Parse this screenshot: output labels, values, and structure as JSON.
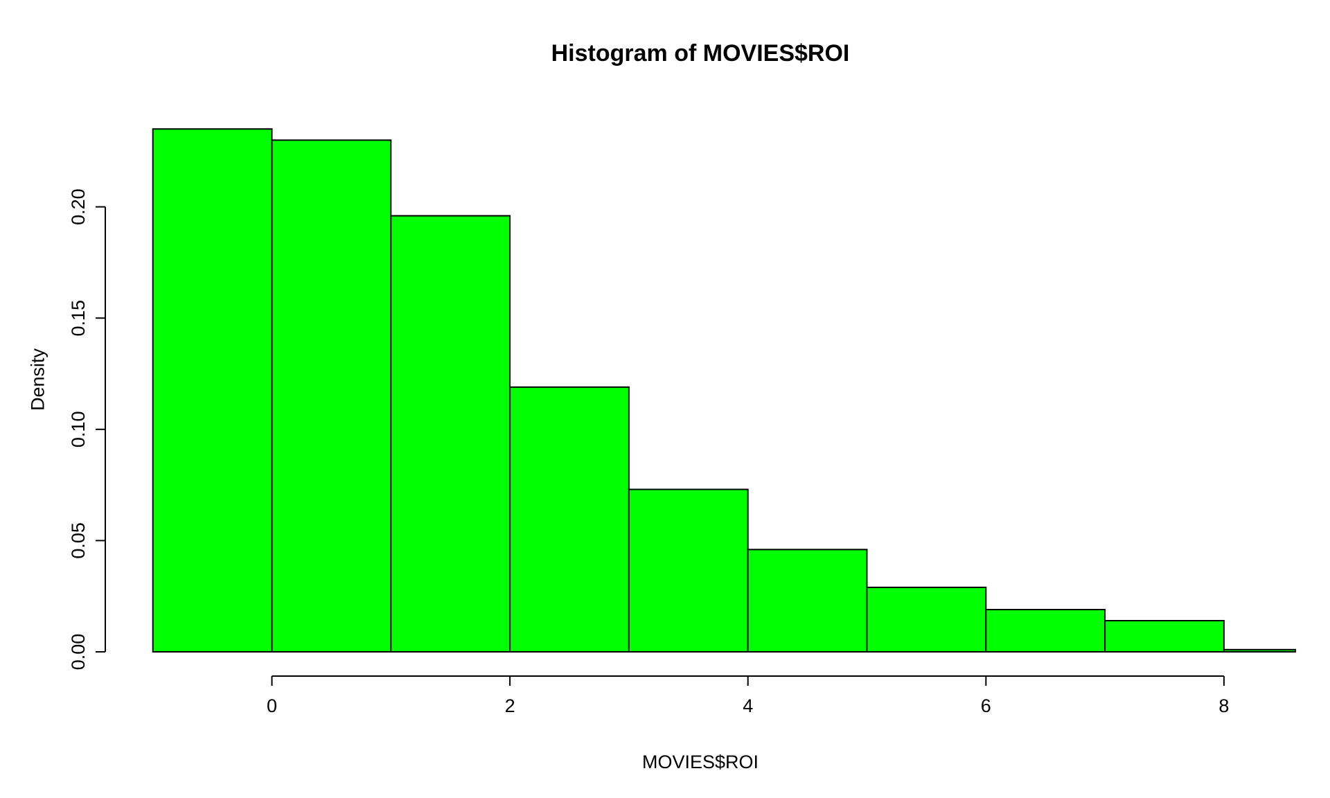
{
  "chart_data": {
    "type": "bar",
    "subtype": "histogram",
    "title": "Histogram of MOVIES$ROI",
    "xlabel": "MOVIES$ROI",
    "ylabel": "Density",
    "breaks": [
      -1,
      0,
      1,
      2,
      3,
      4,
      5,
      6,
      7,
      8,
      9
    ],
    "densities": [
      0.235,
      0.23,
      0.196,
      0.119,
      0.073,
      0.046,
      0.029,
      0.019,
      0.014,
      0.001
    ],
    "x_ticks": [
      0,
      2,
      4,
      6,
      8
    ],
    "x_tick_labels": [
      "0",
      "2",
      "4",
      "6",
      "8"
    ],
    "y_ticks": [
      0.0,
      0.05,
      0.1,
      0.15,
      0.2
    ],
    "y_tick_labels": [
      "0.00",
      "0.05",
      "0.10",
      "0.15",
      "0.20"
    ],
    "xlim": [
      -1.4,
      8.6
    ],
    "ylim": [
      0,
      0.2444
    ],
    "grid": false,
    "legend": null,
    "colors": {
      "bar_fill": "#00FF00",
      "bar_stroke": "#000000",
      "axis": "#000000",
      "background": "#FFFFFF"
    }
  }
}
